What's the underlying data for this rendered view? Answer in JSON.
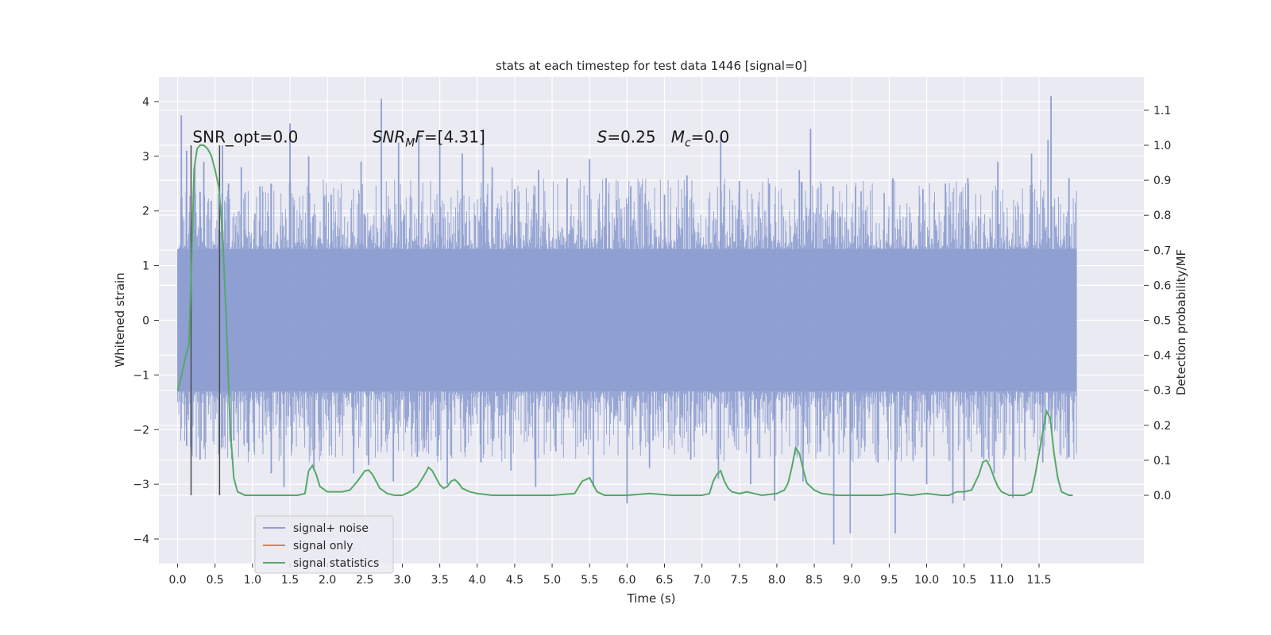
{
  "chart_data": {
    "type": "line",
    "title": "stats at each timestep for test data 1446 [signal=0]",
    "xlabel": "Time (s)",
    "ylabel": "Whitened strain",
    "ylabel_right": "Detection probability/MF",
    "xlim": [
      -0.25,
      12.9
    ],
    "ylim": [
      -4.45,
      4.45
    ],
    "ylim_right": [
      -0.195,
      1.195
    ],
    "x_ticks": [
      0.0,
      0.5,
      1.0,
      1.5,
      2.0,
      2.5,
      3.0,
      3.5,
      4.0,
      4.5,
      5.0,
      5.5,
      6.0,
      6.5,
      7.0,
      7.5,
      8.0,
      8.5,
      9.0,
      9.5,
      10.0,
      10.5,
      11.0,
      11.5
    ],
    "x_tick_labels": [
      "0.0",
      "0.5",
      "1.0",
      "1.5",
      "2.0",
      "2.5",
      "3.0",
      "3.5",
      "4.0",
      "4.5",
      "5.0",
      "5.5",
      "6.0",
      "6.5",
      "7.0",
      "7.5",
      "8.0",
      "8.5",
      "9.0",
      "9.5",
      "10.0",
      "10.5",
      "11.0",
      "11.5"
    ],
    "y_ticks": [
      4,
      3,
      2,
      1,
      0,
      -1,
      -2,
      -3,
      -4
    ],
    "y_tick_labels": [
      "4",
      "3",
      "2",
      "1",
      "0",
      "−1",
      "−2",
      "−3",
      "−4"
    ],
    "y_right_ticks": [
      1.1,
      1.0,
      0.9,
      0.8,
      0.7,
      0.6,
      0.5,
      0.4,
      0.3,
      0.2,
      0.1,
      0.0
    ],
    "y_right_tick_labels": [
      "1.1",
      "1.0",
      "0.9",
      "0.8",
      "0.7",
      "0.6",
      "0.5",
      "0.4",
      "0.3",
      "0.2",
      "0.1",
      "0.0"
    ],
    "grid": true,
    "legend_placement": "lower-left",
    "noise_band": {
      "x_start": 0.0,
      "x_end": 12.0,
      "dense_upper": 1.3,
      "dense_lower": -1.3,
      "spikes": [
        [
          0.05,
          3.75
        ],
        [
          0.12,
          3.1
        ],
        [
          0.23,
          2.85
        ],
        [
          0.3,
          2.35
        ],
        [
          0.35,
          2.9
        ],
        [
          0.6,
          3.2
        ],
        [
          0.68,
          2.5
        ],
        [
          0.85,
          2.8
        ],
        [
          1.1,
          2.45
        ],
        [
          1.25,
          2.5
        ],
        [
          1.5,
          3.6
        ],
        [
          1.75,
          3.0
        ],
        [
          2.05,
          2.3
        ],
        [
          2.45,
          2.9
        ],
        [
          2.72,
          4.05
        ],
        [
          2.95,
          3.25
        ],
        [
          3.22,
          3.35
        ],
        [
          3.5,
          3.25
        ],
        [
          3.8,
          3.05
        ],
        [
          4.08,
          3.5
        ],
        [
          4.2,
          2.8
        ],
        [
          4.5,
          2.4
        ],
        [
          4.82,
          2.75
        ],
        [
          5.2,
          2.6
        ],
        [
          5.5,
          2.95
        ],
        [
          5.72,
          2.6
        ],
        [
          6.05,
          2.45
        ],
        [
          6.5,
          2.3
        ],
        [
          6.8,
          2.65
        ],
        [
          7.25,
          3.4
        ],
        [
          7.5,
          2.55
        ],
        [
          7.9,
          2.5
        ],
        [
          8.3,
          2.75
        ],
        [
          8.45,
          3.5
        ],
        [
          8.75,
          2.45
        ],
        [
          9.05,
          2.45
        ],
        [
          9.55,
          2.6
        ],
        [
          9.95,
          2.4
        ],
        [
          10.25,
          2.5
        ],
        [
          10.55,
          2.6
        ],
        [
          10.95,
          2.9
        ],
        [
          11.4,
          3.05
        ],
        [
          11.62,
          3.3
        ],
        [
          11.66,
          4.1
        ],
        [
          11.9,
          2.6
        ]
      ],
      "low_spikes": [
        [
          0.12,
          -2.3
        ],
        [
          0.3,
          -2.55
        ],
        [
          0.55,
          -2.45
        ],
        [
          0.75,
          -2.2
        ],
        [
          0.95,
          -2.4
        ],
        [
          1.25,
          -2.8
        ],
        [
          1.42,
          -3.05
        ],
        [
          1.82,
          -2.75
        ],
        [
          2.35,
          -2.8
        ],
        [
          2.55,
          -2.65
        ],
        [
          2.88,
          -2.95
        ],
        [
          3.2,
          -2.5
        ],
        [
          3.6,
          -3.0
        ],
        [
          4.05,
          -2.6
        ],
        [
          4.45,
          -2.75
        ],
        [
          4.78,
          -3.05
        ],
        [
          5.05,
          -2.4
        ],
        [
          5.55,
          -3.05
        ],
        [
          6.0,
          -3.35
        ],
        [
          6.3,
          -2.7
        ],
        [
          6.85,
          -2.55
        ],
        [
          7.22,
          -2.9
        ],
        [
          7.65,
          -3.0
        ],
        [
          7.97,
          -3.3
        ],
        [
          8.35,
          -2.95
        ],
        [
          8.58,
          -2.4
        ],
        [
          8.76,
          -4.1
        ],
        [
          8.98,
          -3.9
        ],
        [
          9.35,
          -2.6
        ],
        [
          9.58,
          -3.9
        ],
        [
          10.0,
          -3.0
        ],
        [
          10.35,
          -3.35
        ],
        [
          10.5,
          -3.3
        ],
        [
          10.9,
          -2.8
        ],
        [
          11.15,
          -3.25
        ],
        [
          11.55,
          -2.6
        ],
        [
          11.9,
          -2.5
        ]
      ]
    },
    "series": [
      {
        "name": "signal+ noise",
        "color": "#8e9fd0"
      },
      {
        "name": "signal only",
        "color": "#dd8452"
      },
      {
        "name": "signal statistics",
        "color": "#55a868",
        "axis": "right",
        "x": [
          0.0,
          0.05,
          0.1,
          0.15,
          0.18,
          0.22,
          0.26,
          0.3,
          0.35,
          0.4,
          0.45,
          0.5,
          0.55,
          0.6,
          0.65,
          0.7,
          0.75,
          0.8,
          0.9,
          1.0,
          1.2,
          1.4,
          1.6,
          1.7,
          1.75,
          1.8,
          1.85,
          1.9,
          2.0,
          2.2,
          2.3,
          2.4,
          2.5,
          2.55,
          2.6,
          2.7,
          2.8,
          2.9,
          3.0,
          3.1,
          3.2,
          3.3,
          3.35,
          3.4,
          3.45,
          3.5,
          3.55,
          3.6,
          3.65,
          3.7,
          3.75,
          3.8,
          3.9,
          4.0,
          4.2,
          4.5,
          5.0,
          5.3,
          5.4,
          5.5,
          5.55,
          5.6,
          5.7,
          6.0,
          6.3,
          6.6,
          6.8,
          7.0,
          7.1,
          7.15,
          7.2,
          7.25,
          7.3,
          7.35,
          7.4,
          7.5,
          7.6,
          7.7,
          7.8,
          8.0,
          8.1,
          8.15,
          8.2,
          8.25,
          8.3,
          8.35,
          8.4,
          8.5,
          8.6,
          8.8,
          9.0,
          9.2,
          9.4,
          9.6,
          9.8,
          10.0,
          10.2,
          10.3,
          10.4,
          10.5,
          10.6,
          10.7,
          10.75,
          10.8,
          10.85,
          10.9,
          10.95,
          11.0,
          11.1,
          11.2,
          11.3,
          11.4,
          11.45,
          11.5,
          11.55,
          11.6,
          11.65,
          11.7,
          11.75,
          11.8,
          11.85,
          11.9,
          11.95
        ],
        "y": [
          0.3,
          0.34,
          0.39,
          0.43,
          0.62,
          0.93,
          0.99,
          1.0,
          1.0,
          0.99,
          0.97,
          0.93,
          0.88,
          0.75,
          0.5,
          0.2,
          0.05,
          0.01,
          0.0,
          0.0,
          0.0,
          0.0,
          0.0,
          0.005,
          0.07,
          0.085,
          0.06,
          0.025,
          0.01,
          0.01,
          0.015,
          0.04,
          0.07,
          0.072,
          0.06,
          0.02,
          0.005,
          0.0,
          0.0,
          0.01,
          0.025,
          0.06,
          0.08,
          0.07,
          0.05,
          0.03,
          0.02,
          0.025,
          0.04,
          0.045,
          0.035,
          0.02,
          0.01,
          0.005,
          0.0,
          0.0,
          0.0,
          0.005,
          0.04,
          0.05,
          0.03,
          0.01,
          0.0,
          0.0,
          0.005,
          0.0,
          0.0,
          0.0,
          0.005,
          0.04,
          0.06,
          0.07,
          0.04,
          0.02,
          0.01,
          0.005,
          0.01,
          0.005,
          0.0,
          0.005,
          0.015,
          0.035,
          0.08,
          0.135,
          0.12,
          0.075,
          0.035,
          0.015,
          0.005,
          0.0,
          0.0,
          0.0,
          0.0,
          0.005,
          0.0,
          0.005,
          0.0,
          0.0,
          0.01,
          0.01,
          0.015,
          0.06,
          0.095,
          0.1,
          0.08,
          0.05,
          0.025,
          0.01,
          0.0,
          0.0,
          0.0,
          0.01,
          0.06,
          0.12,
          0.18,
          0.24,
          0.22,
          0.12,
          0.05,
          0.01,
          0.005,
          0.0,
          0.0
        ]
      }
    ],
    "vlines": [
      {
        "x": 0.18,
        "y_bottom": -3.2,
        "y_top": 3.2
      },
      {
        "x": 0.56,
        "y_bottom": -3.2,
        "y_top": 3.2
      }
    ],
    "annotations": [
      {
        "x": 0.2,
        "y": 3.25,
        "name": "snr-opt",
        "parts": [
          {
            "t": "SNR_opt=0.0",
            "style": "normal"
          }
        ]
      },
      {
        "x": 2.6,
        "y": 3.25,
        "name": "snr-mf",
        "parts": [
          {
            "t": "SNR",
            "style": "italic"
          },
          {
            "t": "M",
            "style": "italic-sub"
          },
          {
            "t": "F",
            "style": "italic"
          },
          {
            "t": "=[4.31]",
            "style": "normal"
          }
        ]
      },
      {
        "x": 5.6,
        "y": 3.25,
        "name": "s-mc",
        "parts": [
          {
            "t": "S",
            "style": "italic"
          },
          {
            "t": "=0.25   ",
            "style": "normal"
          },
          {
            "t": "M",
            "style": "italic"
          },
          {
            "t": "c",
            "style": "italic-sub"
          },
          {
            "t": "=0.0",
            "style": "normal"
          }
        ]
      }
    ],
    "legend": [
      {
        "label": "signal+ noise",
        "color": "#8e9fd0"
      },
      {
        "label": "signal only",
        "color": "#dd8452"
      },
      {
        "label": "signal statistics",
        "color": "#55a868"
      }
    ]
  }
}
